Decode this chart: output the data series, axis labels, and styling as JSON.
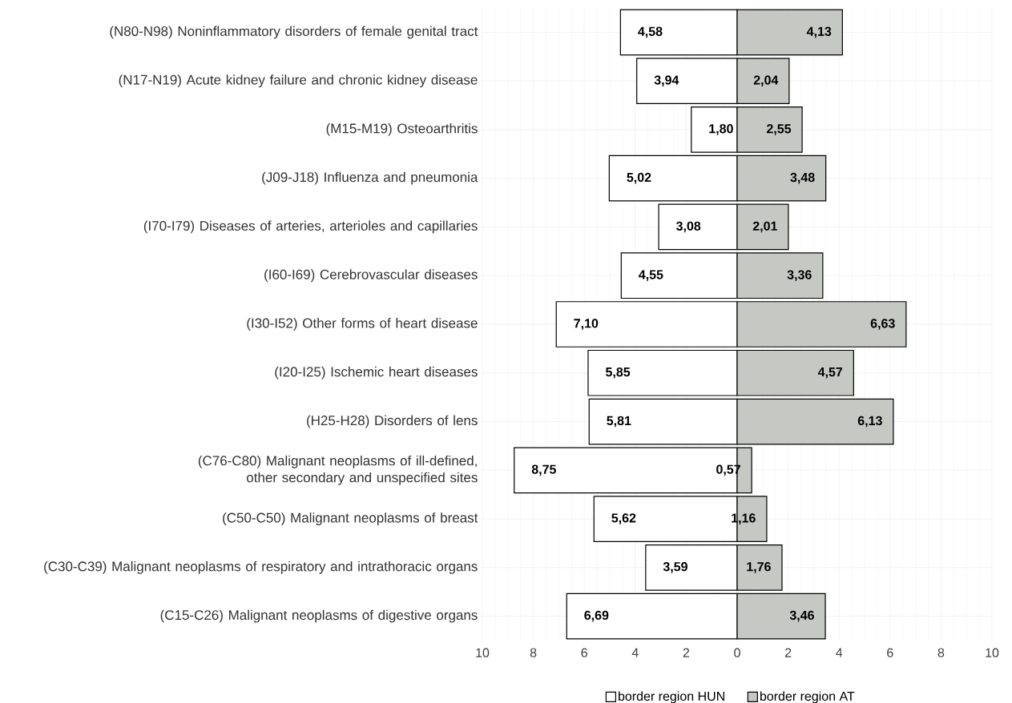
{
  "chart_data": [
    {
      "type": "bar",
      "orientation": "horizontal",
      "categories": [
        "(N80-N98) Noninflammatory disorders of female genital tract",
        "(N17-N19) Acute kidney failure and chronic kidney disease",
        "(M15-M19) Osteoarthritis",
        "(J09-J18) Influenza and pneumonia",
        "(I70-I79) Diseases of arteries, arterioles and capillaries",
        "(I60-I69) Cerebrovascular diseases",
        "(I30-I52) Other forms of heart disease",
        "(I20-I25) Ischemic heart diseases",
        "(H25-H28) Disorders of lens",
        "(C76-C80) Malignant neoplasms of ill-defined, other secondary and unspecified sites",
        "(C50-C50) Malignant neoplasms of breast",
        "(C30-C39) Malignant neoplasms of respiratory and intrathoracic organs",
        "(C15-C26) Malignant neoplasms of digestive organs"
      ],
      "series": [
        {
          "name": "border region HUN",
          "color": "#ffffff",
          "values": [
            4.58,
            3.94,
            1.8,
            5.02,
            3.08,
            4.55,
            7.1,
            5.85,
            5.81,
            8.75,
            5.62,
            3.59,
            6.69
          ],
          "value_labels": [
            "4,58",
            "3,94",
            "1,80",
            "5,02",
            "3,08",
            "4,55",
            "7,10",
            "5,85",
            "5,81",
            "8,75",
            "5,62",
            "3,59",
            "6,69"
          ]
        }
      ],
      "xlim": [
        10,
        0
      ],
      "xticks": [
        10,
        8,
        6,
        4,
        2,
        0
      ],
      "grid": true,
      "legend": "bottom"
    },
    {
      "type": "bar",
      "orientation": "horizontal",
      "categories": [
        null,
        null,
        null,
        null,
        null,
        null,
        null,
        null,
        null,
        null,
        null,
        null,
        null
      ],
      "series": [
        {
          "name": "border region AT",
          "color": "#c6c8c4",
          "values": [
            4.13,
            2.04,
            2.55,
            3.48,
            2.01,
            3.36,
            6.63,
            4.57,
            6.13,
            0.57,
            1.16,
            1.76,
            3.46
          ],
          "value_labels": [
            "4,13",
            "2,04",
            "2,55",
            "3,48",
            "2,01",
            "3,36",
            "6,63",
            "4,57",
            "6,13",
            "0,57",
            "1,16",
            "1,76",
            "3,46"
          ]
        }
      ],
      "xlim": [
        0,
        10
      ],
      "xticks": [
        {
          "value": 0,
          "label": null
        },
        2,
        4,
        6,
        8,
        10
      ],
      "grid": true,
      "legend": "bottom",
      "tick_labels": "x"
    }
  ]
}
